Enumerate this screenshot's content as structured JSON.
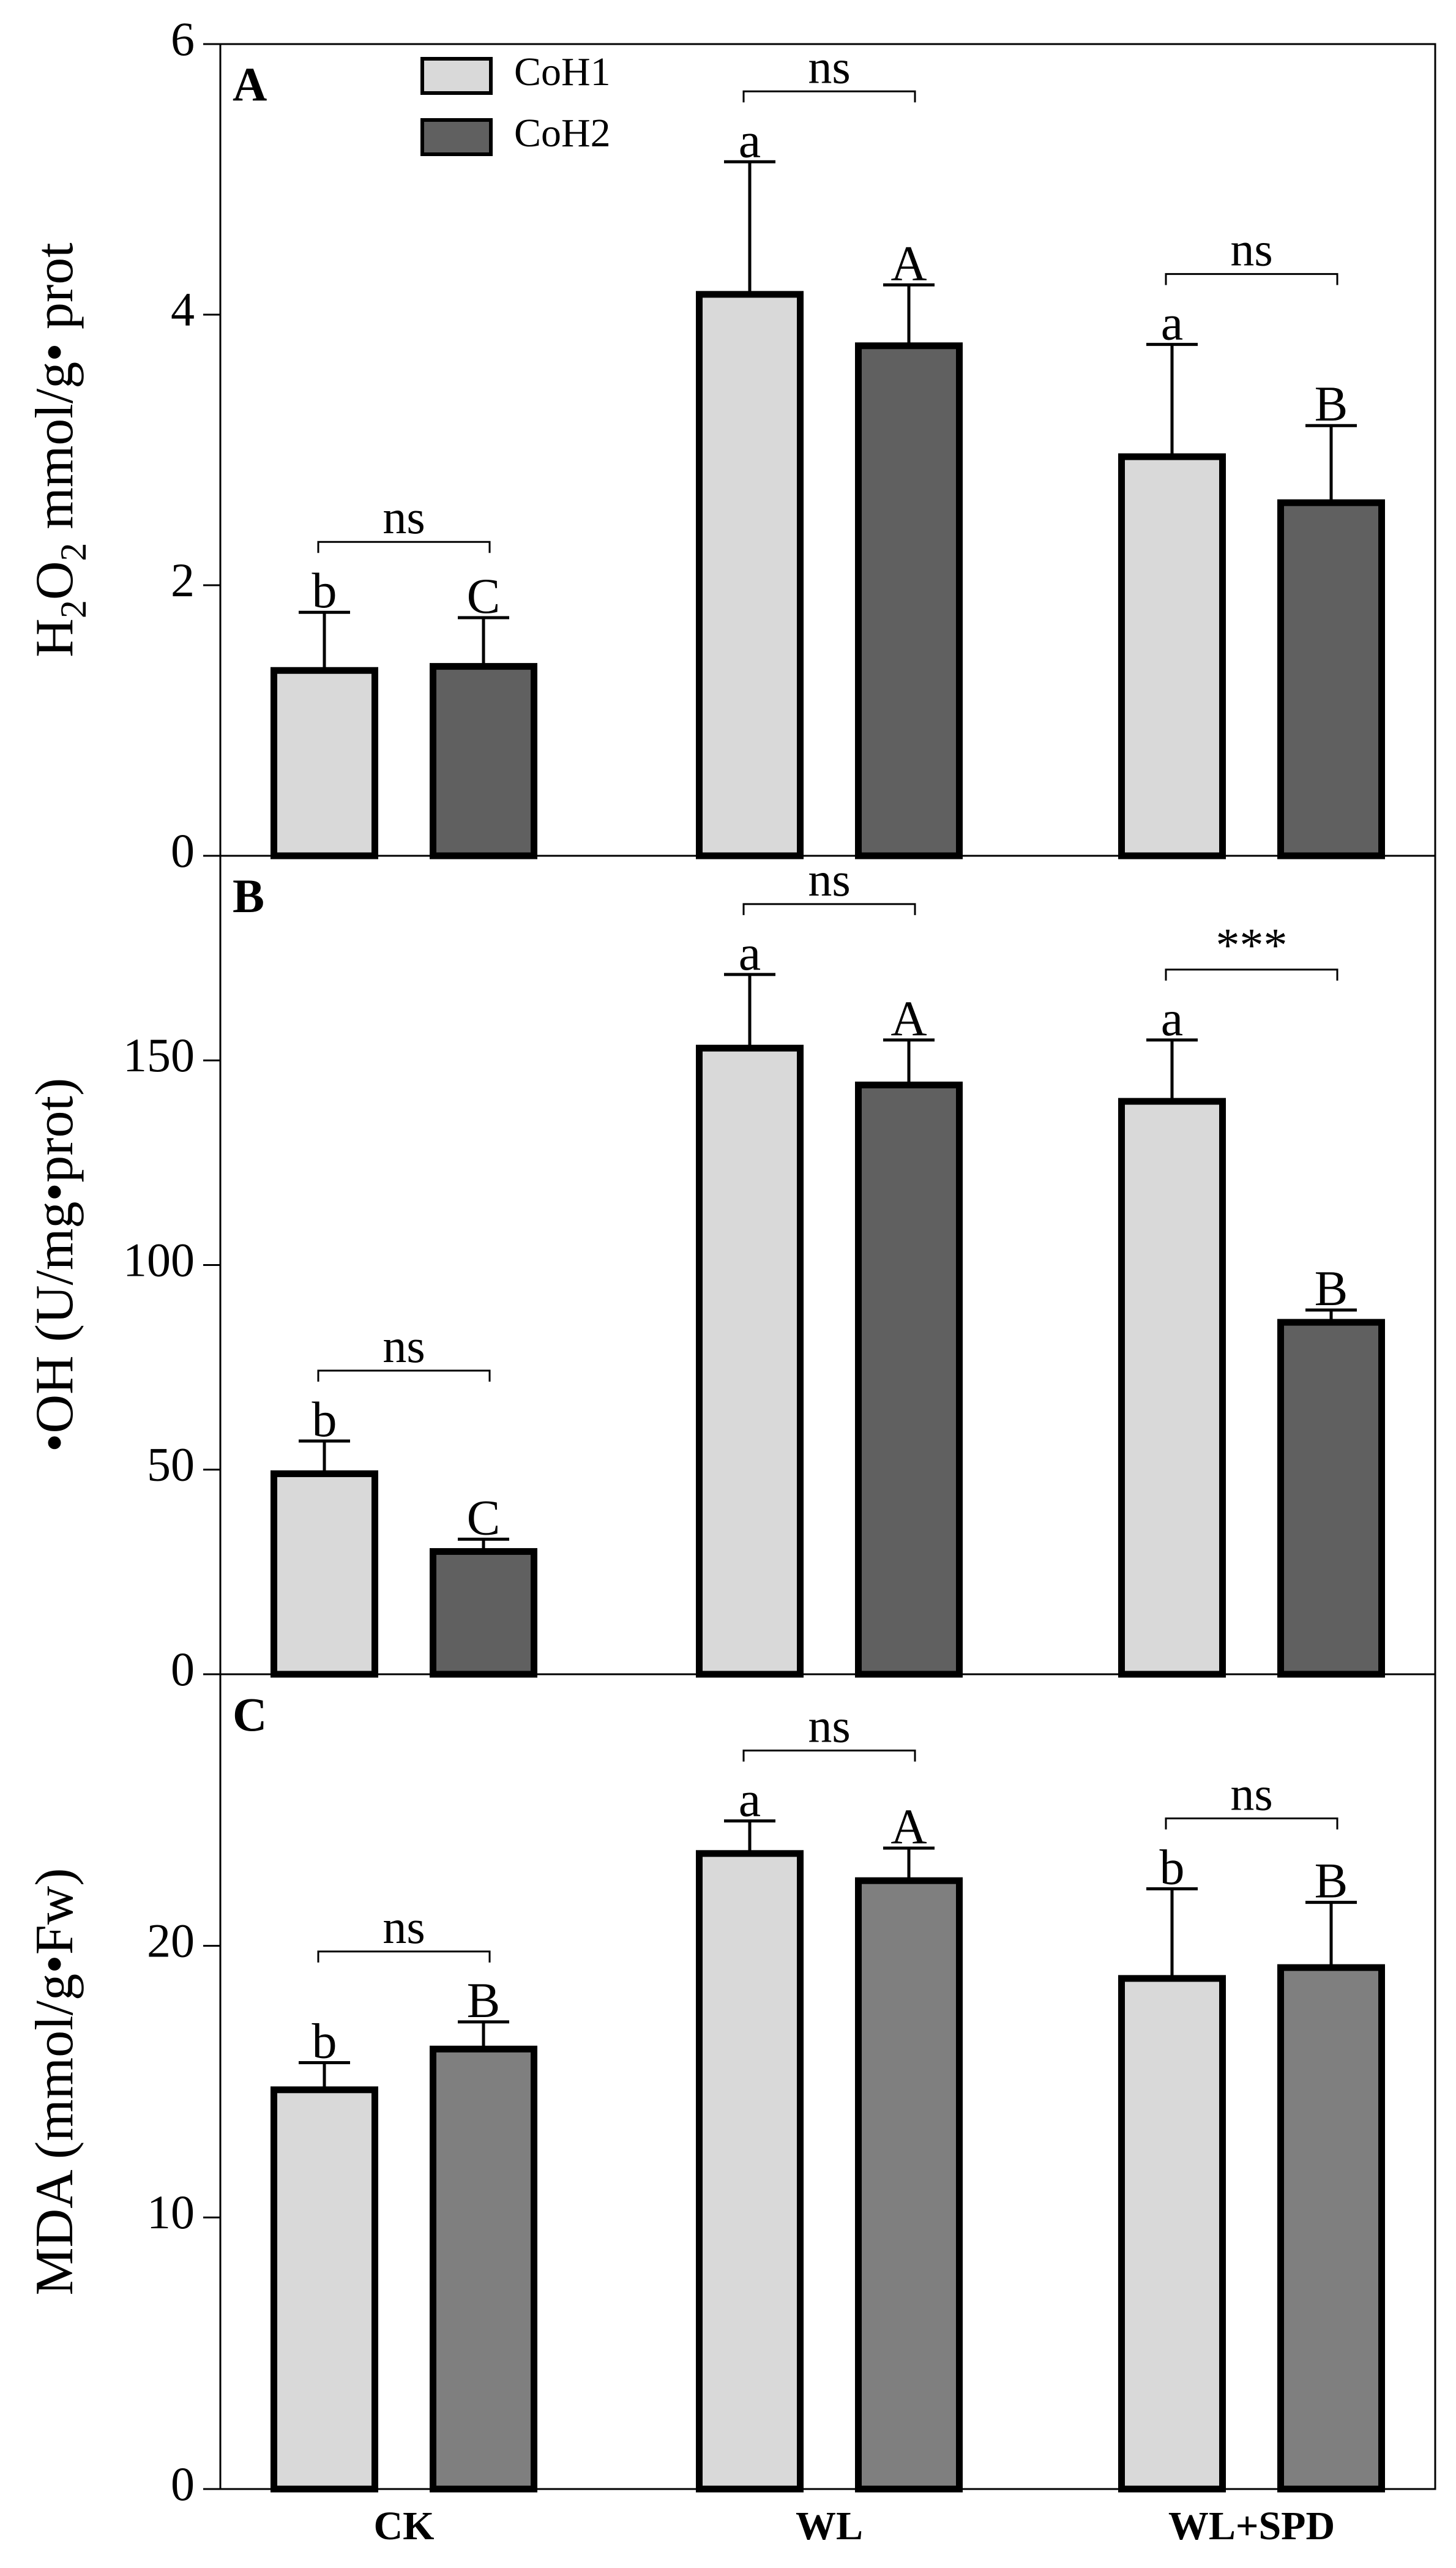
{
  "chart_data": [
    {
      "type": "bar",
      "panel": "A",
      "ylabel_main": "H",
      "ylabel_sub1": "2",
      "ylabel_mid": "O",
      "ylabel_sub2": "2",
      "ylabel_rest": " mmol/g• prot",
      "ylim": [
        0,
        6
      ],
      "yticks": [
        0,
        2,
        4,
        6
      ],
      "categories": [
        "CK",
        "WL",
        "WL+SPD"
      ],
      "series": [
        {
          "name": "CoH1",
          "color": "#d9d9d9",
          "values": [
            1.37,
            4.15,
            2.95
          ],
          "errors": [
            0.43,
            0.98,
            0.83
          ],
          "letters": [
            "b",
            "a",
            "a"
          ]
        },
        {
          "name": "CoH2",
          "color": "#606060",
          "values": [
            1.4,
            3.77,
            2.61
          ],
          "errors": [
            0.36,
            0.45,
            0.57
          ],
          "letters": [
            "C",
            "A",
            "B"
          ]
        }
      ],
      "comparisons": [
        "ns",
        "ns",
        "ns"
      ],
      "legend": true,
      "legend_position": "top-left"
    },
    {
      "type": "bar",
      "panel": "B",
      "ylabel": "•OH (U/mg•prot)",
      "ylim": [
        0,
        200
      ],
      "yticks": [
        0,
        50,
        100,
        150
      ],
      "categories": [
        "CK",
        "WL",
        "WL+SPD"
      ],
      "series": [
        {
          "name": "CoH1",
          "color": "#d9d9d9",
          "values": [
            49,
            153,
            140
          ],
          "errors": [
            8,
            18,
            15
          ],
          "letters": [
            "b",
            "a",
            "a"
          ]
        },
        {
          "name": "CoH2",
          "color": "#606060",
          "values": [
            30,
            144,
            86
          ],
          "errors": [
            3,
            11,
            3
          ],
          "letters": [
            "C",
            "A",
            "B"
          ]
        }
      ],
      "comparisons": [
        "ns",
        "ns",
        "***"
      ]
    },
    {
      "type": "bar",
      "panel": "C",
      "ylabel": "MDA (mmol/g•Fw)",
      "ylim": [
        0,
        30
      ],
      "yticks": [
        0,
        10,
        20
      ],
      "categories": [
        "CK",
        "WL",
        "WL+SPD"
      ],
      "series": [
        {
          "name": "CoH1",
          "color": "#d9d9d9",
          "values": [
            14.7,
            23.4,
            18.8
          ],
          "errors": [
            1.0,
            1.2,
            3.3
          ],
          "letters": [
            "b",
            "a",
            "b"
          ]
        },
        {
          "name": "CoH2",
          "color": "#7f7f7f",
          "values": [
            16.2,
            22.4,
            19.2
          ],
          "errors": [
            1.0,
            1.2,
            2.4
          ],
          "letters": [
            "B",
            "A",
            "B"
          ]
        }
      ],
      "comparisons": [
        "ns",
        "ns",
        "ns"
      ]
    }
  ]
}
